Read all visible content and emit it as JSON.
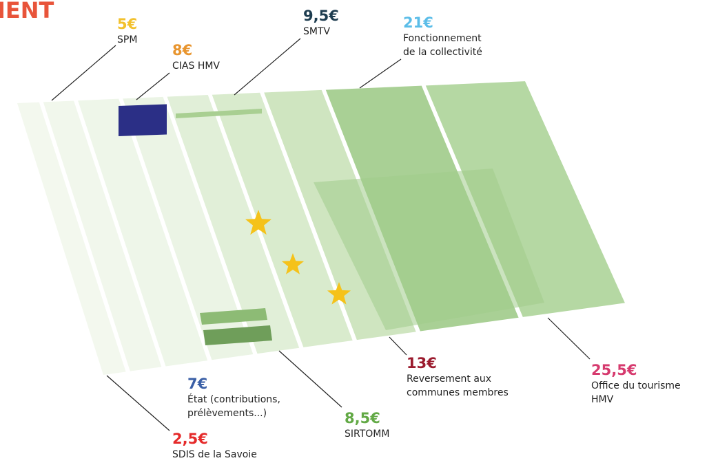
{
  "header": {
    "title": "IENT"
  },
  "items": [
    {
      "amount": "5€",
      "label": [
        "SPM"
      ]
    },
    {
      "amount": "8€",
      "label": [
        "CIAS HMV"
      ]
    },
    {
      "amount": "9,5€",
      "label": [
        "SMTV"
      ]
    },
    {
      "amount": "21€",
      "label": [
        "Fonctionnement",
        "de la collectivité"
      ]
    },
    {
      "amount": "13€",
      "label": [
        "Reversement aux",
        "communes membres"
      ]
    },
    {
      "amount": "25,5€",
      "label": [
        "Office du tourisme",
        "HMV"
      ]
    },
    {
      "amount": "7€",
      "label": [
        "État (contributions,",
        "prélèvements...)"
      ]
    },
    {
      "amount": "8,5€",
      "label": [
        "SIRTOMM"
      ]
    },
    {
      "amount": "2,5€",
      "label": [
        "SDIS de la Savoie"
      ]
    }
  ]
}
